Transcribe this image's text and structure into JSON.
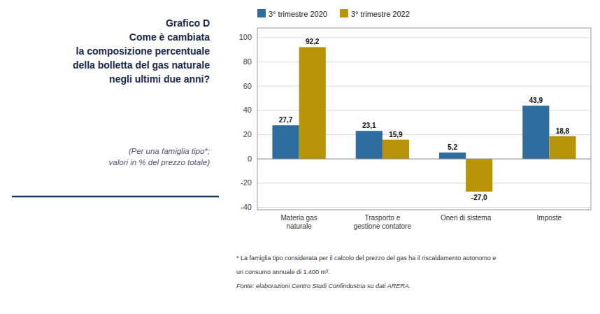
{
  "chart_data": {
    "type": "bar",
    "title": "Grafico D\nCome è cambiata\nla composizione percentuale\ndella bolletta del gas naturale\nnegli ultimi due anni?",
    "subtitle": "(Per una famiglia tipo*;\nvalori in % del prezzo totale)",
    "annotations": [
      "* La famiglia tipo considerata per il calcolo del prezzo del gas ha il riscaldamento autonomo e",
      "un consumo annuale di 1.400 m³.",
      "Fonte: elaborazioni Centro Studi Confindustria su dati ARERA."
    ],
    "categories": [
      "Materia gas naturale",
      "Trasporto e gestione contatore",
      "Oneri di sistema",
      "Imposte"
    ],
    "series": [
      {
        "name": "3° trimestre 2020",
        "color": "#2e6d9e",
        "values": [
          27.7,
          23.1,
          5.2,
          43.9
        ],
        "value_labels": [
          "27,7",
          "23,1",
          "5,2",
          "43,9"
        ]
      },
      {
        "name": "3° trimestre 2022",
        "color": "#b8940a",
        "values": [
          92.2,
          15.9,
          -27.0,
          18.8
        ],
        "value_labels": [
          "92,2",
          "15,9",
          "-27,0",
          "18,8"
        ]
      }
    ],
    "ylim": [
      -42,
      108
    ],
    "yticks": [
      -40,
      -20,
      0,
      20,
      40,
      60,
      80,
      100
    ],
    "grid": true,
    "legend": "top-left",
    "data_labels": true
  }
}
